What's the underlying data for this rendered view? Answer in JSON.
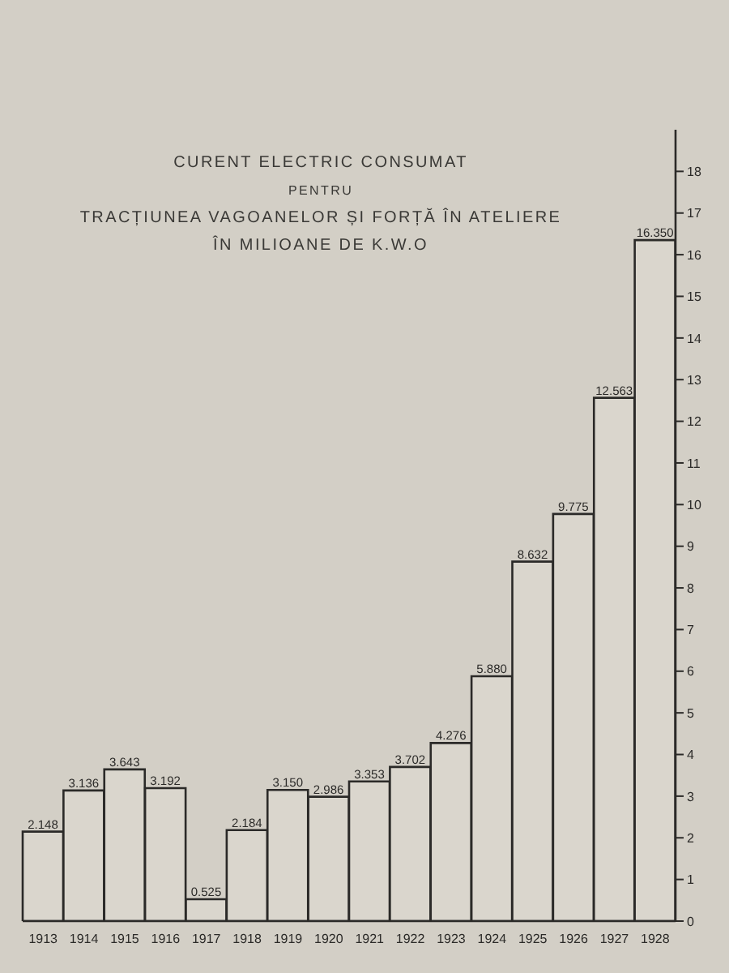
{
  "chart_data": {
    "type": "bar",
    "title": "CURENT ELECTRIC CONSUMAT\nPENTRU\nTRACȚIUNEA VAGOANELOR ȘI FORȚĂ ÎN ATELIERE",
    "subtitle": "ÎN MILIOANE DE K.W.O",
    "categories": [
      "1913",
      "1914",
      "1915",
      "1916",
      "1917",
      "1918",
      "1919",
      "1920",
      "1921",
      "1922",
      "1923",
      "1924",
      "1925",
      "1926",
      "1927",
      "1928"
    ],
    "values": [
      2.148,
      3.136,
      3.643,
      3.192,
      0.525,
      2.184,
      3.15,
      2.986,
      3.353,
      3.702,
      4.276,
      5.88,
      8.632,
      9.775,
      12.563,
      16.35
    ],
    "value_labels": [
      "2.148",
      "3.136",
      "3.643",
      "3.192",
      "0.525",
      "2.184",
      "3.150",
      "2.986",
      "3.353",
      "3.702",
      "4.276",
      "5.880",
      "8.632",
      "9.775",
      "12.563",
      "16.350"
    ],
    "color": "#dad6cd",
    "ylim": [
      0,
      19
    ],
    "yticks": [
      0,
      1,
      2,
      3,
      4,
      5,
      6,
      7,
      8,
      9,
      10,
      11,
      12,
      13,
      14,
      15,
      16,
      17,
      18
    ]
  }
}
